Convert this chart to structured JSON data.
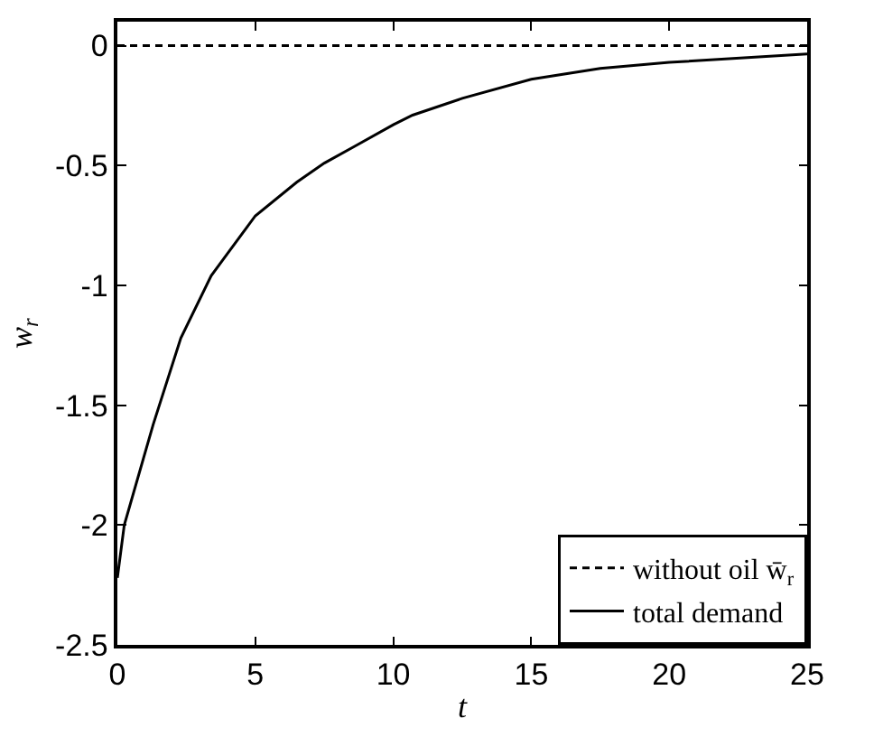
{
  "chart_data": {
    "type": "line",
    "xlabel": "t",
    "ylabel": "w$_{r}$",
    "xlim": [
      0,
      25
    ],
    "ylim": [
      -2.5,
      0.1
    ],
    "xticks": [
      0,
      5,
      10,
      15,
      20,
      25
    ],
    "yticks": [
      {
        "value": 0,
        "label": "0"
      },
      -0.5,
      -1,
      -1.5,
      -2,
      -2.5
    ],
    "legend": "bottom right",
    "marker": "none",
    "series": [
      {
        "name": "without oil w̄$_{r}$",
        "color": "#000000",
        "line_style": "dashed",
        "x": [
          0,
          25
        ],
        "values": [
          0,
          0
        ]
      },
      {
        "name": "total demand",
        "color": "#000000",
        "line_style": "solid",
        "x": [
          0,
          0.25,
          1.3,
          2.3,
          3.4,
          5,
          6.5,
          7.5,
          8.6,
          10,
          10.7,
          12.5,
          15,
          17.5,
          20,
          25
        ],
        "values": [
          -2.22,
          -2.0,
          -1.58,
          -1.22,
          -0.96,
          -0.71,
          -0.57,
          -0.49,
          -0.42,
          -0.33,
          -0.29,
          -0.22,
          -0.14,
          -0.095,
          -0.07,
          -0.035
        ]
      }
    ]
  }
}
